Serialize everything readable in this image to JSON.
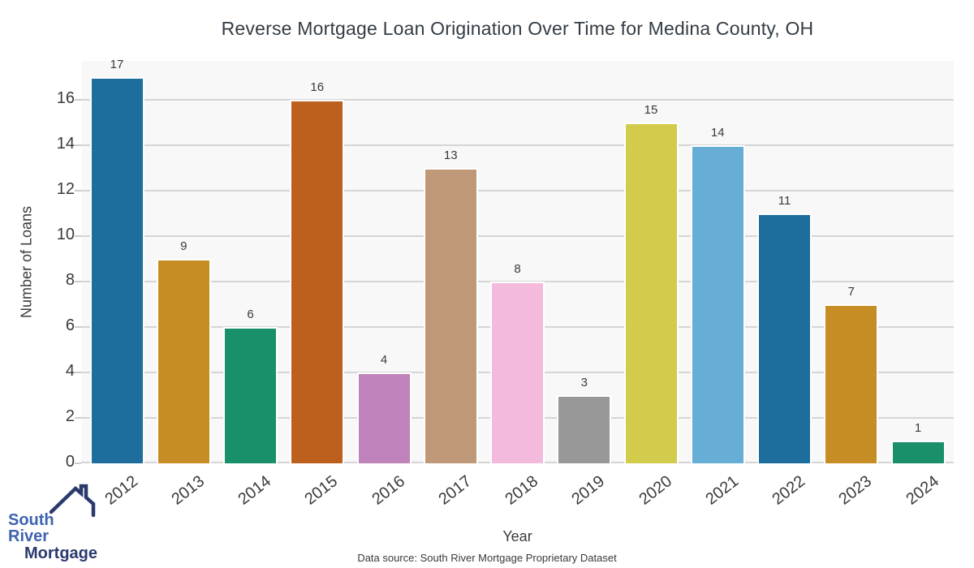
{
  "chart_data": {
    "type": "bar",
    "title": "Reverse Mortgage Loan Origination Over Time for Medina County, OH",
    "xlabel": "Year",
    "ylabel": "Number of Loans",
    "categories": [
      "2012",
      "2013",
      "2014",
      "2015",
      "2016",
      "2017",
      "2018",
      "2019",
      "2020",
      "2021",
      "2022",
      "2023",
      "2024"
    ],
    "values": [
      17,
      9,
      6,
      16,
      4,
      13,
      8,
      3,
      15,
      14,
      11,
      7,
      1
    ],
    "bar_colors": [
      "#1d6e9d",
      "#c68d24",
      "#1a8f6c",
      "#bd601d",
      "#c082bb",
      "#bf9878",
      "#f3badd",
      "#989898",
      "#d3cb4b",
      "#66aed6",
      "#1d6e9d",
      "#c68d24",
      "#1a8f6c"
    ],
    "yticks": [
      0,
      2,
      4,
      6,
      8,
      10,
      12,
      14,
      16
    ],
    "ylim": [
      0,
      17.7
    ],
    "grid": "horizontal",
    "legend": "none",
    "plot_bg": "#f8f8f8",
    "gridline_color": "#d5d5d5",
    "tick_mark_color": "#cccccc"
  },
  "footer": {
    "data_source": "Data source: South River Mortgage Proprietary Dataset"
  },
  "logo": {
    "line1": "South River",
    "line2": "Mortgage",
    "line1_color": "#3e63ae",
    "line2_color": "#2b3a6e",
    "icon_color": "#2b3a6e"
  }
}
